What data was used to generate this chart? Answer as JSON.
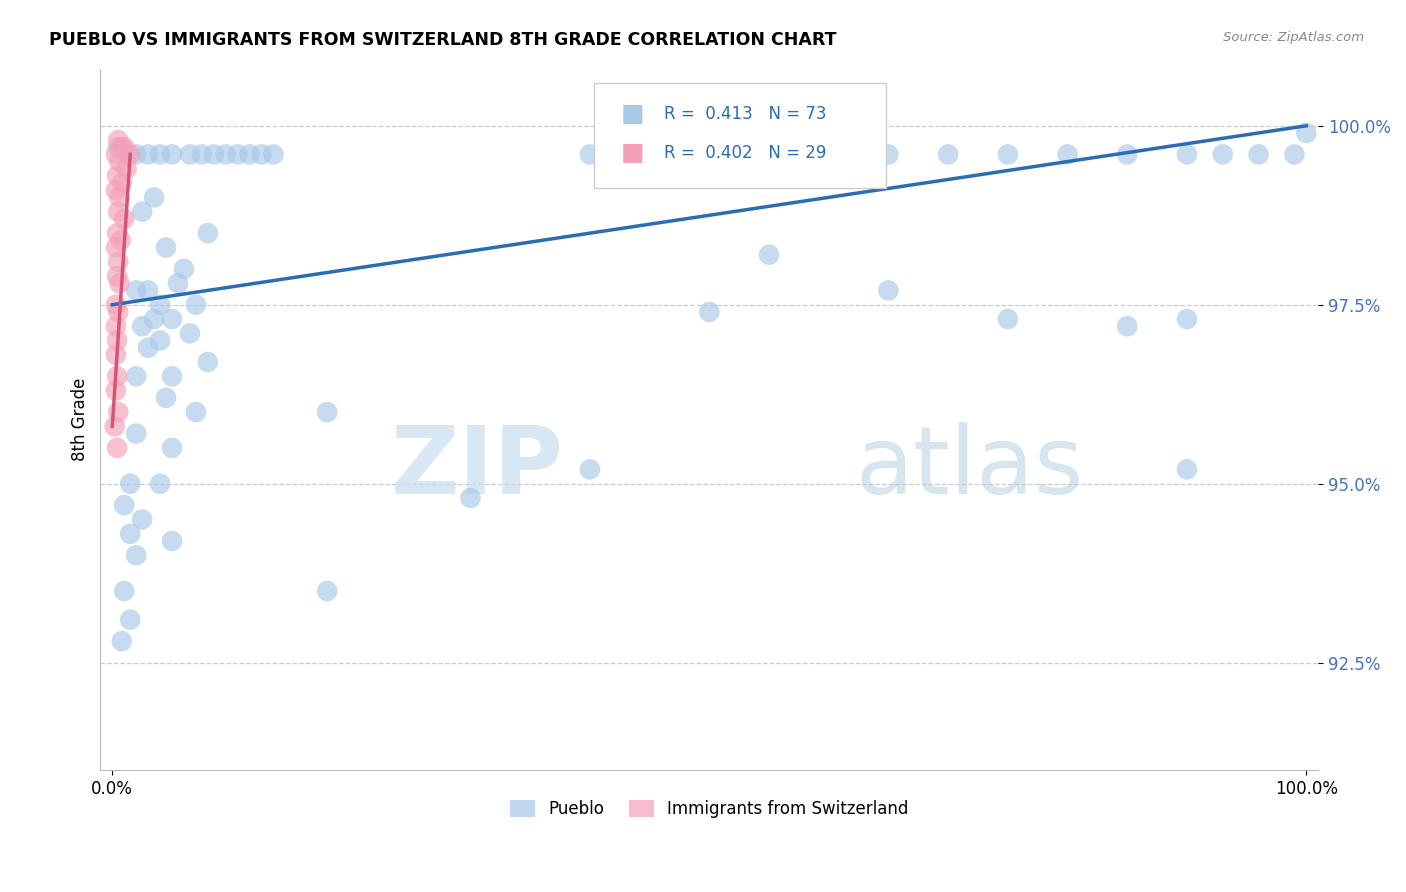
{
  "title": "PUEBLO VS IMMIGRANTS FROM SWITZERLAND 8TH GRADE CORRELATION CHART",
  "source": "Source: ZipAtlas.com",
  "ylabel": "8th Grade",
  "legend_blue_label": "Pueblo",
  "legend_pink_label": "Immigrants from Switzerland",
  "r_blue": 0.413,
  "n_blue": 73,
  "r_pink": 0.402,
  "n_pink": 29,
  "blue_color": "#a8c8e8",
  "pink_color": "#f4a0b8",
  "blue_line_color": "#2a6db5",
  "pink_line_color": "#d4547a",
  "watermark_zip": "ZIP",
  "watermark_atlas": "atlas",
  "blue_points": [
    [
      0.5,
      99.7
    ],
    [
      1.2,
      99.6
    ],
    [
      2.0,
      99.6
    ],
    [
      3.0,
      99.6
    ],
    [
      4.0,
      99.6
    ],
    [
      5.0,
      99.6
    ],
    [
      6.5,
      99.6
    ],
    [
      7.5,
      99.6
    ],
    [
      8.5,
      99.6
    ],
    [
      9.5,
      99.6
    ],
    [
      10.5,
      99.6
    ],
    [
      11.5,
      99.6
    ],
    [
      12.5,
      99.6
    ],
    [
      13.5,
      99.6
    ],
    [
      40.0,
      99.6
    ],
    [
      45.0,
      99.6
    ],
    [
      50.0,
      99.6
    ],
    [
      55.0,
      99.6
    ],
    [
      60.0,
      99.6
    ],
    [
      65.0,
      99.6
    ],
    [
      70.0,
      99.6
    ],
    [
      75.0,
      99.6
    ],
    [
      80.0,
      99.6
    ],
    [
      85.0,
      99.6
    ],
    [
      90.0,
      99.6
    ],
    [
      93.0,
      99.6
    ],
    [
      96.0,
      99.6
    ],
    [
      99.0,
      99.6
    ],
    [
      100.0,
      99.9
    ],
    [
      3.5,
      99.0
    ],
    [
      2.5,
      98.8
    ],
    [
      8.0,
      98.5
    ],
    [
      4.5,
      98.3
    ],
    [
      6.0,
      98.0
    ],
    [
      5.5,
      97.8
    ],
    [
      3.0,
      97.7
    ],
    [
      2.0,
      97.7
    ],
    [
      4.0,
      97.5
    ],
    [
      7.0,
      97.5
    ],
    [
      3.5,
      97.3
    ],
    [
      5.0,
      97.3
    ],
    [
      2.5,
      97.2
    ],
    [
      6.5,
      97.1
    ],
    [
      55.0,
      98.2
    ],
    [
      65.0,
      97.7
    ],
    [
      50.0,
      97.4
    ],
    [
      75.0,
      97.3
    ],
    [
      85.0,
      97.2
    ],
    [
      90.0,
      97.3
    ],
    [
      4.0,
      97.0
    ],
    [
      3.0,
      96.9
    ],
    [
      8.0,
      96.7
    ],
    [
      5.0,
      96.5
    ],
    [
      2.0,
      96.5
    ],
    [
      4.5,
      96.2
    ],
    [
      7.0,
      96.0
    ],
    [
      18.0,
      96.0
    ],
    [
      2.0,
      95.7
    ],
    [
      5.0,
      95.5
    ],
    [
      40.0,
      95.2
    ],
    [
      90.0,
      95.2
    ],
    [
      1.5,
      95.0
    ],
    [
      4.0,
      95.0
    ],
    [
      1.0,
      94.7
    ],
    [
      30.0,
      94.8
    ],
    [
      2.5,
      94.5
    ],
    [
      1.5,
      94.3
    ],
    [
      5.0,
      94.2
    ],
    [
      2.0,
      94.0
    ],
    [
      1.0,
      93.5
    ],
    [
      18.0,
      93.5
    ],
    [
      1.5,
      93.1
    ],
    [
      0.8,
      92.8
    ]
  ],
  "pink_points": [
    [
      0.5,
      99.8
    ],
    [
      1.0,
      99.7
    ],
    [
      0.8,
      99.7
    ],
    [
      1.5,
      99.6
    ],
    [
      0.3,
      99.6
    ],
    [
      0.6,
      99.5
    ],
    [
      1.2,
      99.4
    ],
    [
      0.4,
      99.3
    ],
    [
      0.8,
      99.2
    ],
    [
      0.3,
      99.1
    ],
    [
      0.6,
      99.0
    ],
    [
      0.5,
      98.8
    ],
    [
      1.0,
      98.7
    ],
    [
      0.4,
      98.5
    ],
    [
      0.7,
      98.4
    ],
    [
      0.3,
      98.3
    ],
    [
      0.5,
      98.1
    ],
    [
      0.4,
      97.9
    ],
    [
      0.6,
      97.8
    ],
    [
      0.3,
      97.5
    ],
    [
      0.5,
      97.4
    ],
    [
      0.3,
      97.2
    ],
    [
      0.4,
      97.0
    ],
    [
      0.3,
      96.8
    ],
    [
      0.4,
      96.5
    ],
    [
      0.3,
      96.3
    ],
    [
      0.5,
      96.0
    ],
    [
      0.2,
      95.8
    ],
    [
      0.4,
      95.5
    ]
  ],
  "xlim": [
    -1,
    101
  ],
  "ylim": [
    91.0,
    100.8
  ],
  "yticks": [
    92.5,
    95.0,
    97.5,
    100.0
  ],
  "ytick_labels": [
    "92.5%",
    "95.0%",
    "97.5%",
    "100.0%"
  ],
  "xticks": [
    0,
    100
  ],
  "xtick_labels": [
    "0.0%",
    "100.0%"
  ],
  "grid_color": "#cccccc",
  "background_color": "#ffffff",
  "blue_trend": [
    0,
    97.5,
    100,
    100.0
  ],
  "pink_trend_start_x": 0,
  "pink_trend_start_y": 95.8,
  "pink_trend_end_x": 1.5,
  "pink_trend_end_y": 99.6
}
